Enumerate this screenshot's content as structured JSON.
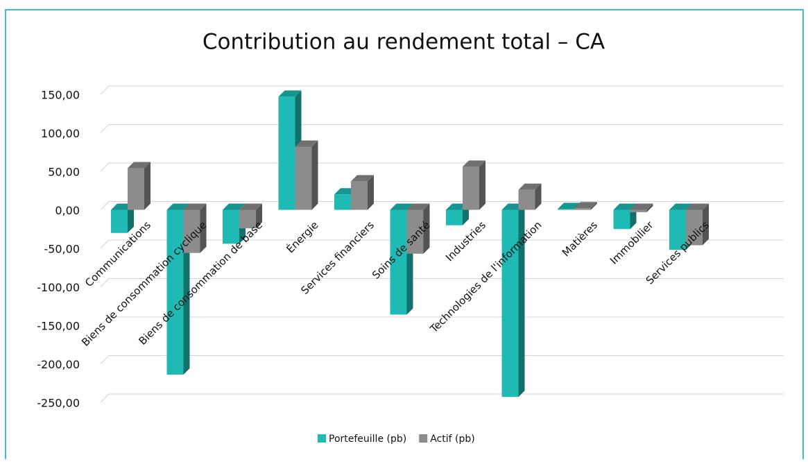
{
  "chart_data": {
    "type": "bar3d",
    "title": "Contribution au rendement total – CA",
    "categories": [
      "Communications",
      "Biens de consommation cyclique",
      "Biens de consommation de base",
      "Énergie",
      "Services financiers",
      "Soins de santé",
      "Industries",
      "Technologies de l'information",
      "Matières",
      "Immobilier",
      "Services publics"
    ],
    "series": [
      {
        "name": "Portefeuille (pb)",
        "color": "#1fbab3",
        "values": [
          -30,
          -214,
          -44,
          147,
          20,
          -136,
          -20,
          -243,
          1,
          -25,
          -52
        ]
      },
      {
        "name": "Actif (pb)",
        "color": "#8c8c8c",
        "values": [
          54,
          -56,
          -24,
          82,
          37,
          -57,
          56,
          26,
          2,
          -3,
          -46
        ]
      }
    ],
    "ylim": [
      -250,
      150
    ],
    "yticks": [
      {
        "value": 150,
        "label": "150,00"
      },
      {
        "value": 100,
        "label": "100,00"
      },
      {
        "value": 50,
        "label": "50,00"
      },
      {
        "value": 0,
        "label": "0,00"
      },
      {
        "value": -50,
        "label": "-50,00"
      },
      {
        "value": -100,
        "label": "-100,00"
      },
      {
        "value": -150,
        "label": "-150,00"
      },
      {
        "value": -200,
        "label": "-200,00"
      },
      {
        "value": -250,
        "label": "-250,00"
      }
    ],
    "grid": true,
    "legend": "bottom"
  }
}
